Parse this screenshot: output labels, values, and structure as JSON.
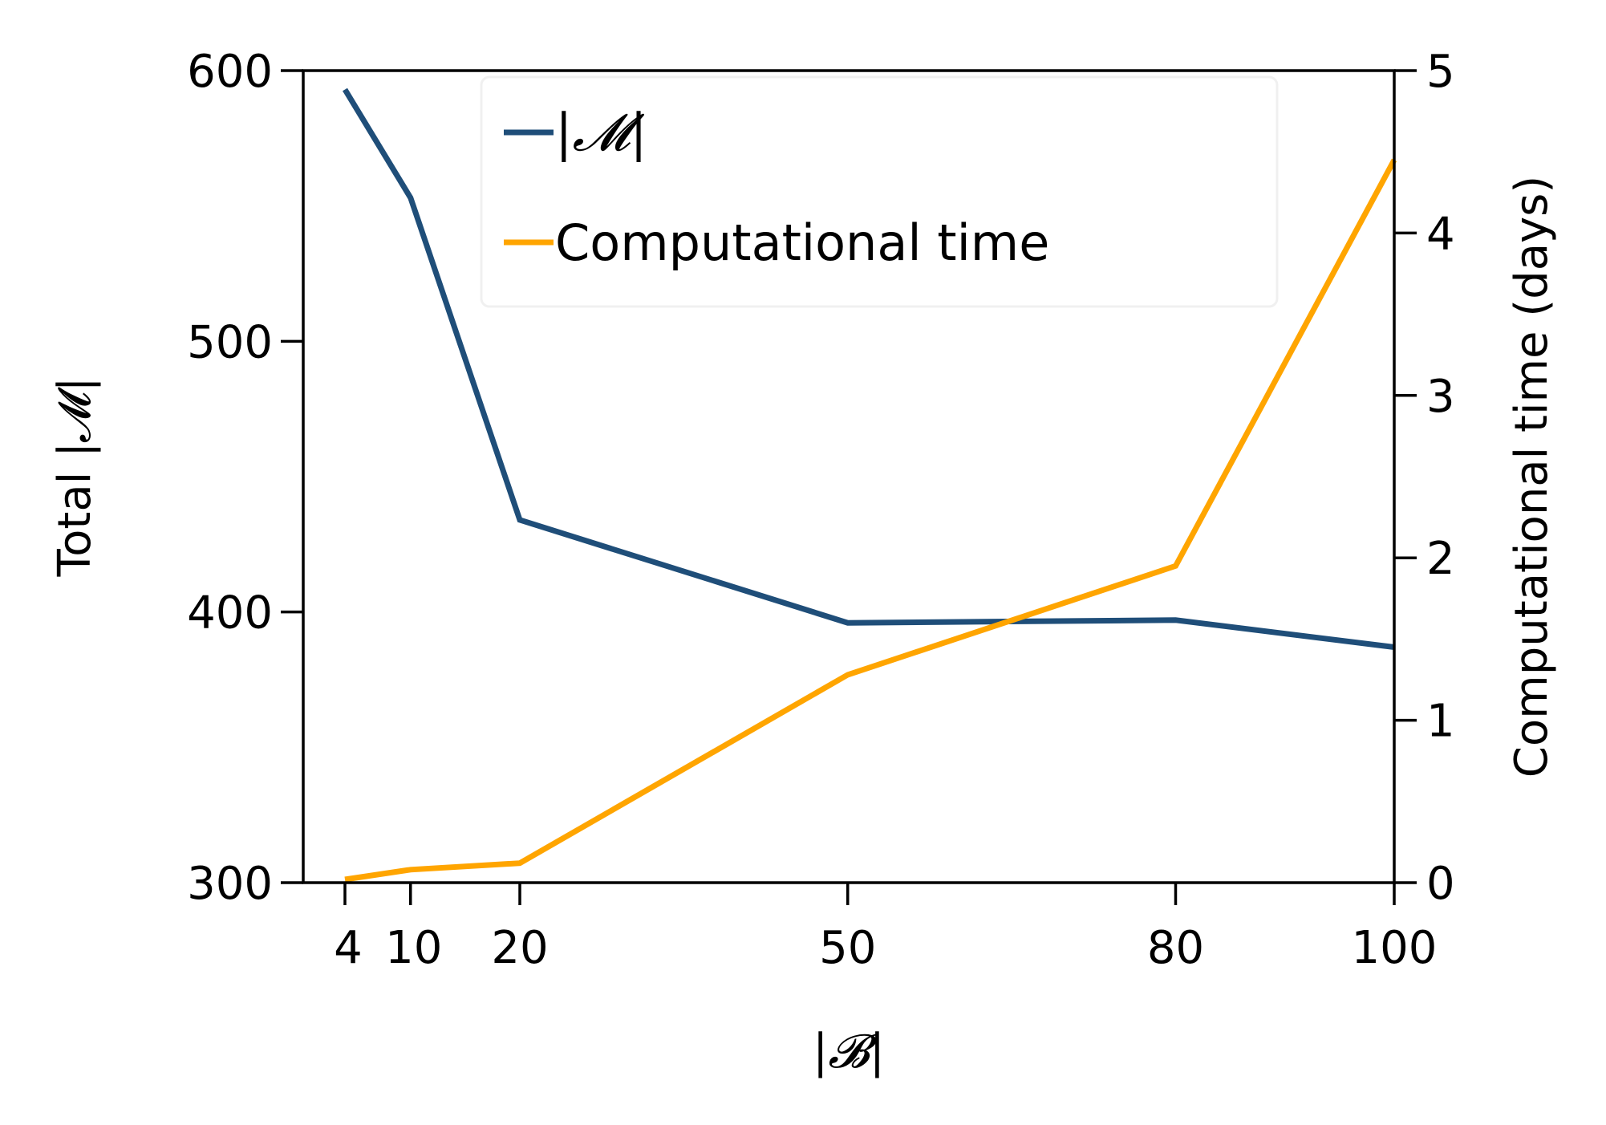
{
  "chart_data": {
    "type": "line",
    "x": [
      4,
      10,
      20,
      50,
      80,
      100
    ],
    "xticks": [
      "4",
      "10",
      "20",
      "50",
      "80",
      "100"
    ],
    "xlabel": "|𝓑|",
    "ylabel_left": "Total |𝓜|",
    "ylabel_right": "Computational time (days)",
    "ylim_left": [
      300,
      600
    ],
    "yticks_left": [
      "300",
      "400",
      "500",
      "600"
    ],
    "ylim_right": [
      0,
      5
    ],
    "yticks_right": [
      "0",
      "1",
      "2",
      "3",
      "4",
      "5"
    ],
    "grid": false,
    "legend_position": "top-center",
    "series": [
      {
        "name": "|𝓜|",
        "axis": "left",
        "color": "#1f4e79",
        "values": [
          593,
          553,
          434,
          396,
          397,
          387
        ]
      },
      {
        "name": "Computational time",
        "axis": "right",
        "color": "#ffa500",
        "values": [
          0.02,
          0.08,
          0.12,
          1.28,
          1.95,
          4.45
        ]
      }
    ]
  }
}
